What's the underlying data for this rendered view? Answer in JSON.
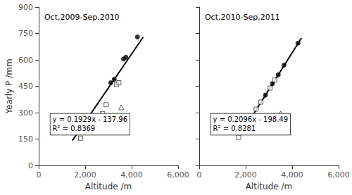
{
  "chart_data": [
    {
      "type": "scatter",
      "title": "Oct,2009-Sep,2010",
      "xlabel": "Altitude /m",
      "ylabel": "Yearly P /mm",
      "series": [
        {
          "type": "scatter",
          "marker": "circle",
          "color": "black",
          "x": [
            3100,
            3250,
            3650,
            3750,
            4250
          ],
          "values": [
            470,
            490,
            605,
            615,
            730
          ]
        },
        {
          "type": "scatter",
          "marker": "square",
          "color": "white",
          "x": [
            1800,
            2750,
            2900,
            3350,
            3450
          ],
          "values": [
            155,
            295,
            345,
            460,
            470
          ]
        },
        {
          "type": "scatter",
          "marker": "triangle",
          "color": "white",
          "x": [
            3550
          ],
          "values": [
            330
          ]
        },
        {
          "type": "line",
          "color": "black",
          "x": [
            1450,
            4500
          ],
          "values": [
            141.745,
            730.09
          ]
        }
      ],
      "annotations": [
        "y = 0.1929x - 137.96",
        "R² = 0.8369"
      ],
      "xlim": [
        0,
        6000
      ],
      "ylim": [
        0,
        900
      ],
      "xticks": [
        0,
        2000,
        4000,
        6000
      ],
      "yticks": [
        0,
        150,
        300,
        450,
        600,
        750,
        900
      ],
      "grid": false
    },
    {
      "type": "scatter",
      "title": "Oct,2010-Sep,2011",
      "xlabel": "Altitude /m",
      "series": [
        {
          "type": "scatter",
          "marker": "circle",
          "color": "black",
          "x": [
            2850,
            3150,
            3400,
            3650,
            4250
          ],
          "values": [
            400,
            465,
            515,
            570,
            695
          ]
        },
        {
          "type": "scatter",
          "marker": "square",
          "color": "white",
          "x": [
            1700,
            2450,
            2650,
            3050,
            3250
          ],
          "values": [
            160,
            320,
            360,
            440,
            485
          ]
        },
        {
          "type": "scatter",
          "marker": "triangle",
          "color": "white",
          "x": [
            3500
          ],
          "values": [
            295
          ]
        },
        {
          "type": "line",
          "color": "black",
          "x": [
            1900,
            4400
          ],
          "values": [
            199.75,
            723.75
          ]
        }
      ],
      "annotations": [
        "y = 0.2096x - 198.49",
        "R² = 0.8281"
      ],
      "xlim": [
        0,
        6000
      ],
      "ylim": [
        0,
        900
      ],
      "xticks": [
        0,
        2000,
        4000,
        6000
      ],
      "yticks": [
        0,
        150,
        300,
        450,
        600,
        750,
        900
      ],
      "grid": false,
      "tick_labels": "x"
    }
  ]
}
